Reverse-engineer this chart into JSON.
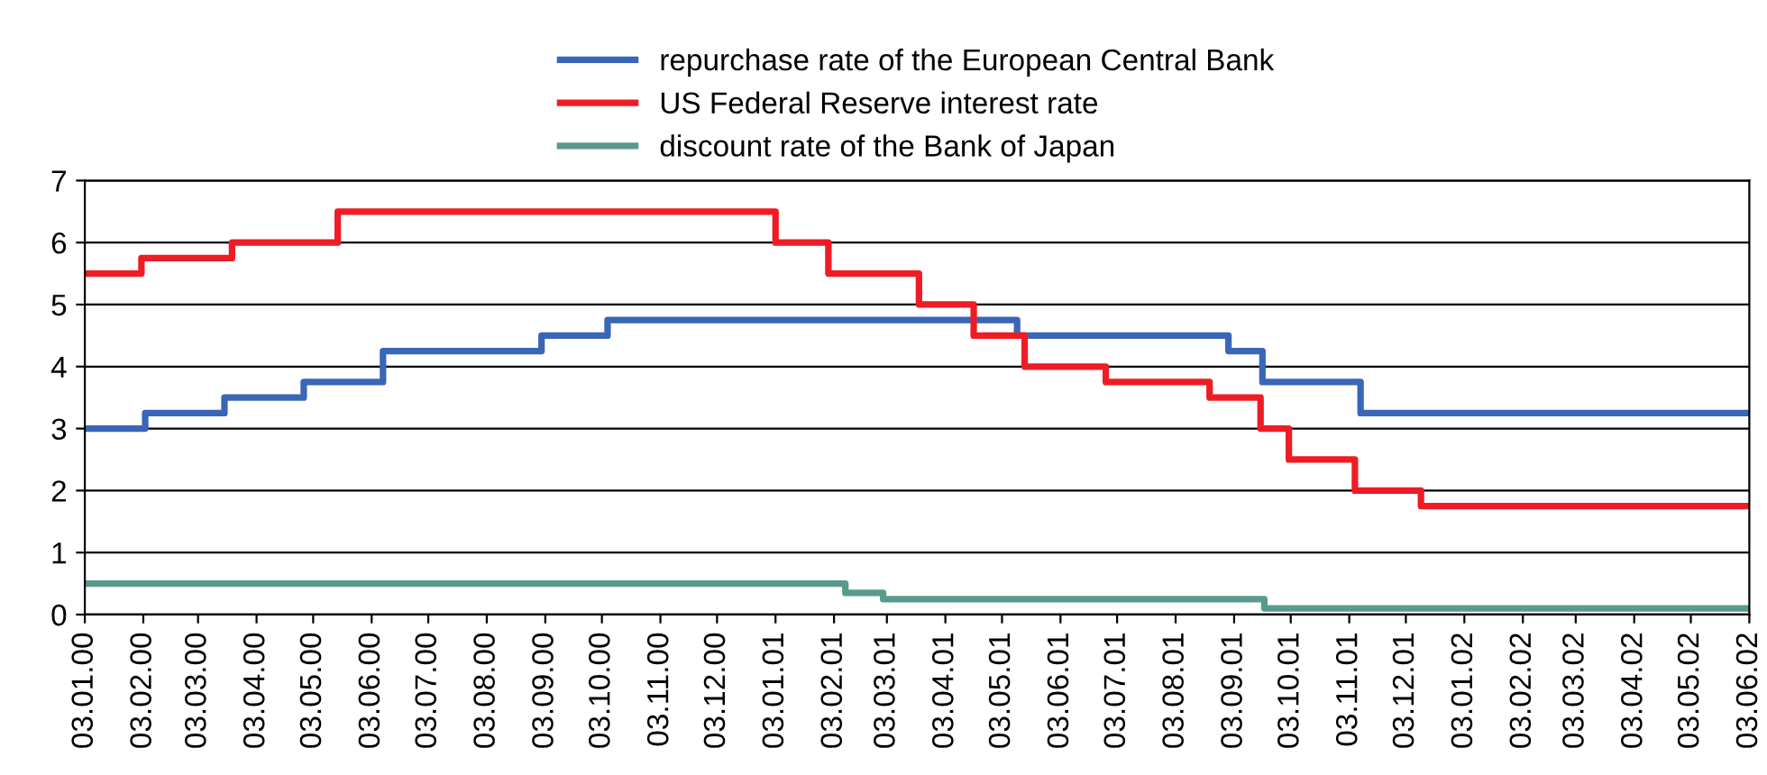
{
  "chart_data": {
    "type": "step",
    "series": [
      {
        "name": "repurchase rate of the European Central Bank",
        "color": "#3a66b8",
        "x": [
          "2000-01-03",
          "2000-02-04",
          "2000-03-17",
          "2000-04-28",
          "2000-06-09",
          "2000-09-01",
          "2000-10-06",
          "2001-05-11",
          "2001-08-31",
          "2001-09-18",
          "2001-11-09",
          "2002-06-03"
        ],
        "values": [
          3.0,
          3.25,
          3.5,
          3.75,
          4.25,
          4.5,
          4.75,
          4.5,
          4.25,
          3.75,
          3.25,
          3.25
        ]
      },
      {
        "name": "US Federal Reserve interest rate",
        "color": "#ee1c25",
        "x": [
          "2000-01-03",
          "2000-02-02",
          "2000-03-21",
          "2000-05-16",
          "2001-01-03",
          "2001-01-31",
          "2001-03-20",
          "2001-04-18",
          "2001-05-15",
          "2001-06-27",
          "2001-08-21",
          "2001-09-17",
          "2001-10-02",
          "2001-11-06",
          "2001-12-11",
          "2002-06-03"
        ],
        "values": [
          5.5,
          5.75,
          6.0,
          6.5,
          6.0,
          5.5,
          5.0,
          4.5,
          4.0,
          3.75,
          3.5,
          3.0,
          2.5,
          2.0,
          1.75,
          1.75
        ]
      },
      {
        "name": "discount rate of the Bank of Japan",
        "color": "#5a9a8e",
        "x": [
          "2000-01-03",
          "2001-02-09",
          "2001-03-01",
          "2001-09-19",
          "2002-06-03"
        ],
        "values": [
          0.5,
          0.35,
          0.25,
          0.1,
          0.1
        ]
      }
    ],
    "xlim": [
      "2000-01-03",
      "2002-06-03"
    ],
    "xticks": [
      {
        "value": "2000-01-03",
        "label": "03.01.00"
      },
      {
        "value": "2000-02-03",
        "label": "03.02.00"
      },
      {
        "value": "2000-03-03",
        "label": "03.03.00"
      },
      {
        "value": "2000-04-03",
        "label": "03.04.00"
      },
      {
        "value": "2000-05-03",
        "label": "03.05.00"
      },
      {
        "value": "2000-06-03",
        "label": "03.06.00"
      },
      {
        "value": "2000-07-03",
        "label": "03.07.00"
      },
      {
        "value": "2000-08-03",
        "label": "03.08.00"
      },
      {
        "value": "2000-09-03",
        "label": "03.09.00"
      },
      {
        "value": "2000-10-03",
        "label": "03.10.00"
      },
      {
        "value": "2000-11-03",
        "label": "03.11.00"
      },
      {
        "value": "2000-12-03",
        "label": "03.12.00"
      },
      {
        "value": "2001-01-03",
        "label": "03.01.01"
      },
      {
        "value": "2001-02-03",
        "label": "03.02.01"
      },
      {
        "value": "2001-03-03",
        "label": "03.03.01"
      },
      {
        "value": "2001-04-03",
        "label": "03.04.01"
      },
      {
        "value": "2001-05-03",
        "label": "03.05.01"
      },
      {
        "value": "2001-06-03",
        "label": "03.06.01"
      },
      {
        "value": "2001-07-03",
        "label": "03.07.01"
      },
      {
        "value": "2001-08-03",
        "label": "03.08.01"
      },
      {
        "value": "2001-09-03",
        "label": "03.09.01"
      },
      {
        "value": "2001-10-03",
        "label": "03.10.01"
      },
      {
        "value": "2001-11-03",
        "label": "03.11.01"
      },
      {
        "value": "2001-12-03",
        "label": "03.12.01"
      },
      {
        "value": "2002-01-03",
        "label": "03.01.02"
      },
      {
        "value": "2002-02-03",
        "label": "03.02.02"
      },
      {
        "value": "2002-03-03",
        "label": "03.03.02"
      },
      {
        "value": "2002-04-03",
        "label": "03.04.02"
      },
      {
        "value": "2002-05-03",
        "label": "03.05.02"
      },
      {
        "value": "2002-06-03",
        "label": "03.06.02"
      }
    ],
    "ylim": [
      0,
      7
    ],
    "yticks": [
      0,
      1,
      2,
      3,
      4,
      5,
      6,
      7
    ],
    "grid": "y",
    "legend": "top",
    "line_style": "solid",
    "marker": "none"
  }
}
